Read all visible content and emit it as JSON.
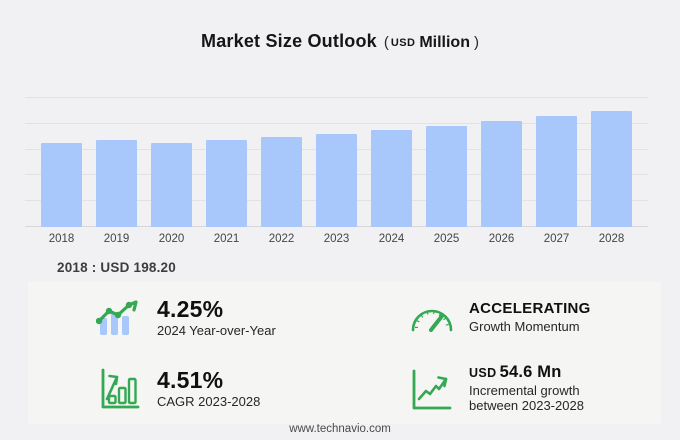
{
  "title": {
    "main": "Market Size Outlook",
    "paren_open": "(",
    "currency": "USD",
    "unit": "Million",
    "paren_close": ")"
  },
  "chart_data": {
    "type": "bar",
    "title": "Market Size Outlook (USD Million)",
    "categories": [
      "2018",
      "2019",
      "2020",
      "2021",
      "2022",
      "2023",
      "2024",
      "2025",
      "2026",
      "2027",
      "2028"
    ],
    "values": [
      198.2,
      205.4,
      200.0,
      207.1,
      212.8,
      221.2,
      230.6,
      240.3,
      250.6,
      262.9,
      275.8
    ],
    "xlabel": "",
    "ylabel": "",
    "ylim": [
      0,
      306
    ],
    "gridlines": 5,
    "grid": true,
    "legend_position": "none",
    "annotation": "2018 : USD 198.20"
  },
  "annotation": "2018 : USD 198.20",
  "stats": {
    "yoy": {
      "value": "4.25%",
      "label": "2024 Year-over-Year",
      "icon": "bars-trendline-icon"
    },
    "momentum": {
      "value": "ACCELERATING",
      "label": "Growth Momentum",
      "icon": "gauge-icon"
    },
    "cagr": {
      "value": "4.51%",
      "label": "CAGR 2023-2028",
      "icon": "growth-bars-arrow-icon"
    },
    "incremental": {
      "value_prefix": "USD",
      "value": "54.6 Mn",
      "label_line1": "Incremental growth",
      "label_line2": "between 2023-2028",
      "icon": "line-growth-axis-icon"
    }
  },
  "footer": {
    "url": "www.technavio.com"
  },
  "colors": {
    "accent_green": "#34a853",
    "bar_blue": "#a8c7fa",
    "page_bg": "#f1f1f4",
    "panel_bg": "#f5f5f3",
    "grid_line": "#e2e2e6",
    "axis_line": "#d7d7db"
  }
}
